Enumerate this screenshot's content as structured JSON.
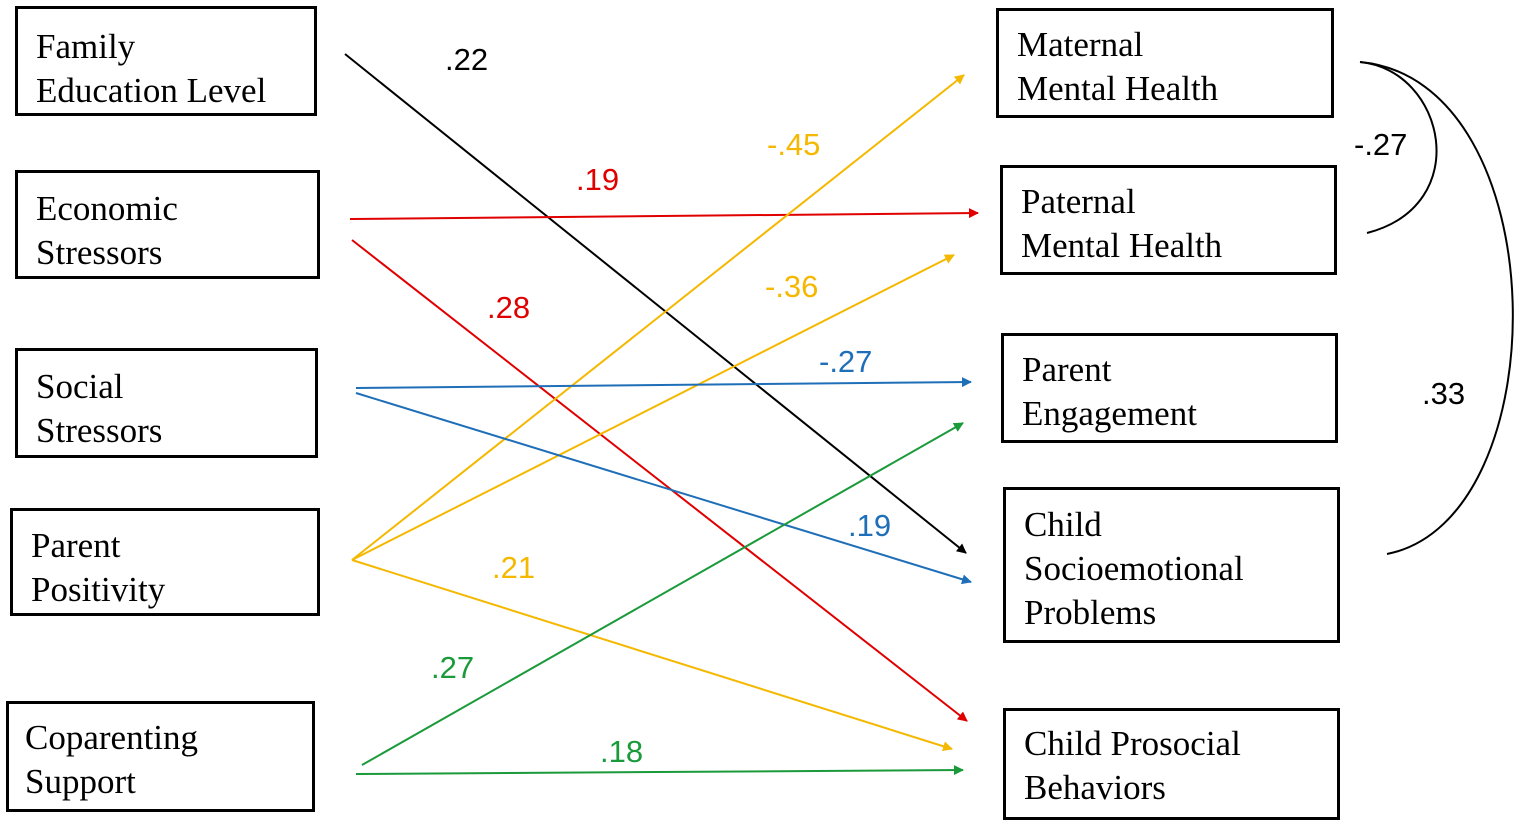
{
  "predictors": [
    {
      "id": "family-education-level",
      "lines": [
        "Family",
        "Education Level"
      ]
    },
    {
      "id": "economic-stressors",
      "lines": [
        "Economic",
        "Stressors"
      ]
    },
    {
      "id": "social-stressors",
      "lines": [
        "Social",
        "Stressors"
      ]
    },
    {
      "id": "parent-positivity",
      "lines": [
        "Parent",
        "Positivity"
      ]
    },
    {
      "id": "coparenting-support",
      "lines": [
        "Coparenting",
        "Support"
      ]
    }
  ],
  "outcomes": [
    {
      "id": "maternal-mental-health",
      "lines": [
        "Maternal",
        "Mental Health"
      ]
    },
    {
      "id": "paternal-mental-health",
      "lines": [
        "Paternal",
        "Mental Health"
      ]
    },
    {
      "id": "parent-engagement",
      "lines": [
        "Parent",
        "Engagement"
      ]
    },
    {
      "id": "child-socioemotional-problems",
      "lines": [
        "Child",
        "Socioemotional",
        "Problems"
      ]
    },
    {
      "id": "child-prosocial-behaviors",
      "lines": [
        "Child Prosocial",
        "Behaviors"
      ]
    }
  ],
  "colors": {
    "black": "#000000",
    "red": "#e00000",
    "yellow": "#f5b800",
    "blue": "#1f6fb8",
    "green": "#1a9a3a"
  },
  "paths": [
    {
      "from": "family-education-level",
      "to": "child-socioemotional-problems",
      "coefficient": ".22",
      "color": "black"
    },
    {
      "from": "economic-stressors",
      "to": "paternal-mental-health",
      "coefficient": ".19",
      "color": "red"
    },
    {
      "from": "economic-stressors",
      "to": "child-prosocial-behaviors",
      "coefficient": ".28",
      "color": "red"
    },
    {
      "from": "parent-positivity",
      "to": "maternal-mental-health",
      "coefficient": "-.45",
      "color": "yellow"
    },
    {
      "from": "parent-positivity",
      "to": "paternal-mental-health",
      "coefficient": "-.36",
      "color": "yellow"
    },
    {
      "from": "parent-positivity",
      "to": "child-prosocial-behaviors",
      "coefficient": ".21",
      "color": "yellow"
    },
    {
      "from": "social-stressors",
      "to": "parent-engagement",
      "coefficient": "-.27",
      "color": "blue"
    },
    {
      "from": "social-stressors",
      "to": "child-socioemotional-problems",
      "coefficient": ".19",
      "color": "blue"
    },
    {
      "from": "coparenting-support",
      "to": "parent-engagement",
      "coefficient": ".27",
      "color": "green"
    },
    {
      "from": "coparenting-support",
      "to": "child-prosocial-behaviors",
      "coefficient": ".18",
      "color": "green"
    }
  ],
  "correlations": [
    {
      "between": [
        "maternal-mental-health",
        "paternal-mental-health"
      ],
      "coefficient": "-.27"
    },
    {
      "between": [
        "maternal-mental-health",
        "child-socioemotional-problems"
      ],
      "coefficient": ".33"
    }
  ]
}
